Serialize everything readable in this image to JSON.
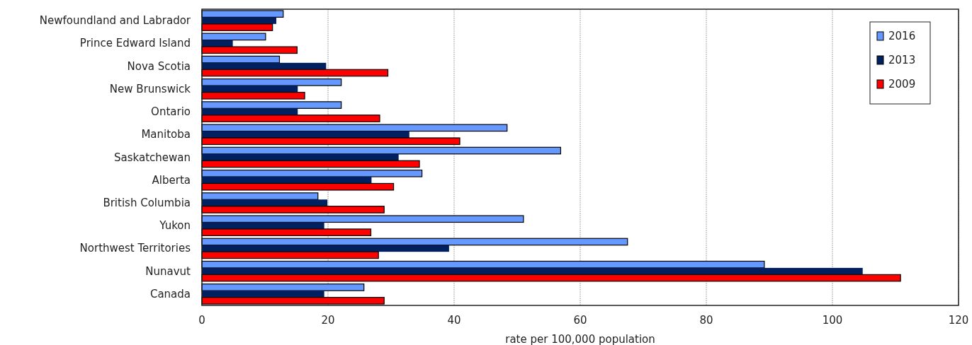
{
  "chart_data": {
    "type": "bar",
    "orientation": "horizontal",
    "xlabel": "rate per 100,000 population",
    "categories": [
      "Newfoundland and Labrador",
      "Prince Edward Island",
      "Nova Scotia",
      "New Brunswick",
      "Ontario",
      "Manitoba",
      "Saskatchewan",
      "Alberta",
      "British Columbia",
      "Yukon",
      "Northwest Territories",
      "Nunavut",
      "Canada"
    ],
    "series": [
      {
        "name": "2016",
        "color": "#6699ff",
        "values": [
          12.9,
          10.1,
          12.3,
          22.1,
          22.1,
          48.4,
          56.9,
          34.9,
          18.4,
          51.0,
          67.5,
          89.2,
          25.7
        ]
      },
      {
        "name": "2013",
        "color": "#002060",
        "values": [
          11.8,
          4.9,
          19.7,
          15.2,
          15.2,
          32.9,
          31.2,
          26.9,
          19.9,
          19.4,
          39.2,
          104.8,
          19.4
        ]
      },
      {
        "name": "2009",
        "color": "#ff0000",
        "values": [
          11.2,
          15.1,
          29.5,
          16.3,
          28.2,
          40.9,
          34.5,
          30.4,
          28.9,
          26.8,
          28.0,
          110.8,
          28.9
        ]
      }
    ],
    "xlim": [
      0,
      120
    ],
    "xticks": [
      0,
      20,
      40,
      60,
      80,
      100,
      120
    ],
    "grid": "x",
    "legend": "top right"
  }
}
